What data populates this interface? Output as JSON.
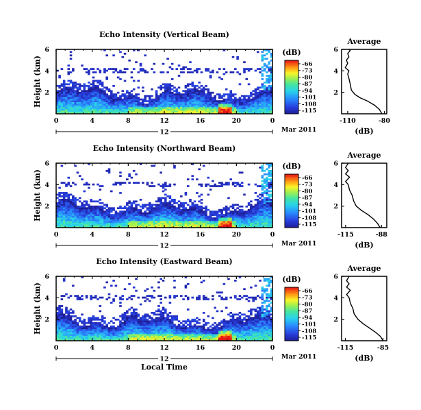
{
  "chart_data": [
    {
      "type": "heatmap",
      "title": "Echo Intensity (Vertical Beam)",
      "ylabel": "Height (km)",
      "xlabel": "",
      "x_ticks": [
        "0",
        "4",
        "8",
        "12",
        "16",
        "20",
        "0"
      ],
      "y_ticks": [
        "6",
        "4",
        "2"
      ],
      "xlim": [
        0,
        24
      ],
      "ylim": [
        0,
        6
      ],
      "day_label": "12",
      "date_label": "Mar 2011",
      "colorbar": {
        "unit": "(dB)",
        "ticks": [
          "-66",
          "-73",
          "-80",
          "-87",
          "-94",
          "-101",
          "-108",
          "-115"
        ],
        "range": [
          -115,
          -66
        ]
      },
      "profile": {
        "title": "Average",
        "xlabel": "(dB)",
        "x_ticks": [
          "-110",
          "-80"
        ],
        "xlim": [
          -115,
          -78
        ],
        "y_ticks": [
          "6",
          "4",
          "2"
        ],
        "points": [
          [
            -82,
            0
          ],
          [
            -84,
            0.4
          ],
          [
            -88,
            0.8
          ],
          [
            -94,
            1.2
          ],
          [
            -100,
            1.5
          ],
          [
            -104,
            1.8
          ],
          [
            -107,
            2.2
          ],
          [
            -108,
            2.8
          ],
          [
            -109,
            3.3
          ],
          [
            -110,
            3.7
          ],
          [
            -109,
            4.0
          ],
          [
            -112,
            4.3
          ],
          [
            -110,
            4.7
          ],
          [
            -111,
            5.0
          ],
          [
            -109,
            5.3
          ],
          [
            -110,
            5.6
          ],
          [
            -108,
            5.9
          ],
          [
            -109,
            6.0
          ]
        ]
      }
    },
    {
      "type": "heatmap",
      "title": "Echo Intensity (Northward Beam)",
      "ylabel": "Height (km)",
      "xlabel": "",
      "x_ticks": [
        "0",
        "4",
        "8",
        "12",
        "16",
        "20",
        "0"
      ],
      "y_ticks": [
        "6",
        "4",
        "2"
      ],
      "xlim": [
        0,
        24
      ],
      "ylim": [
        0,
        6
      ],
      "day_label": "12",
      "date_label": "Mar 2011",
      "colorbar": {
        "unit": "(dB)",
        "ticks": [
          "-66",
          "-73",
          "-80",
          "-87",
          "-94",
          "-101",
          "-108",
          "-115"
        ],
        "range": [
          -115,
          -66
        ]
      },
      "profile": {
        "title": "Average",
        "xlabel": "(dB)",
        "x_ticks": [
          "-115",
          "-88"
        ],
        "xlim": [
          -118,
          -84
        ],
        "y_ticks": [
          "6",
          "4",
          "2"
        ],
        "points": [
          [
            -89,
            0
          ],
          [
            -91,
            0.4
          ],
          [
            -94,
            0.8
          ],
          [
            -98,
            1.2
          ],
          [
            -103,
            1.6
          ],
          [
            -107,
            2.0
          ],
          [
            -109,
            2.5
          ],
          [
            -110,
            3.0
          ],
          [
            -112,
            3.5
          ],
          [
            -113,
            4.0
          ],
          [
            -115,
            4.3
          ],
          [
            -112,
            4.7
          ],
          [
            -115,
            5.0
          ],
          [
            -113,
            5.3
          ],
          [
            -115,
            5.6
          ],
          [
            -113,
            6.0
          ]
        ]
      }
    },
    {
      "type": "heatmap",
      "title": "Echo Intensity (Eastward Beam)",
      "ylabel": "Height (km)",
      "xlabel": "Local Time",
      "x_ticks": [
        "0",
        "4",
        "8",
        "12",
        "16",
        "20",
        "0"
      ],
      "y_ticks": [
        "6",
        "4",
        "2"
      ],
      "xlim": [
        0,
        24
      ],
      "ylim": [
        0,
        6
      ],
      "day_label": "12",
      "date_label": "Mar 2011",
      "colorbar": {
        "unit": "(dB)",
        "ticks": [
          "-66",
          "-73",
          "-80",
          "-87",
          "-94",
          "-101",
          "-108",
          "-115"
        ],
        "range": [
          -115,
          -66
        ]
      },
      "profile": {
        "title": "Average",
        "xlabel": "(dB)",
        "x_ticks": [
          "-115",
          "-85"
        ],
        "xlim": [
          -118,
          -82
        ],
        "y_ticks": [
          "6",
          "4",
          "2"
        ],
        "points": [
          [
            -85,
            0
          ],
          [
            -87,
            0.4
          ],
          [
            -91,
            0.8
          ],
          [
            -96,
            1.2
          ],
          [
            -101,
            1.6
          ],
          [
            -105,
            2.0
          ],
          [
            -108,
            2.5
          ],
          [
            -109,
            3.0
          ],
          [
            -111,
            3.5
          ],
          [
            -112,
            4.0
          ],
          [
            -114,
            4.3
          ],
          [
            -111,
            4.7
          ],
          [
            -114,
            5.0
          ],
          [
            -112,
            5.3
          ],
          [
            -114,
            5.6
          ],
          [
            -112,
            6.0
          ]
        ]
      }
    }
  ]
}
